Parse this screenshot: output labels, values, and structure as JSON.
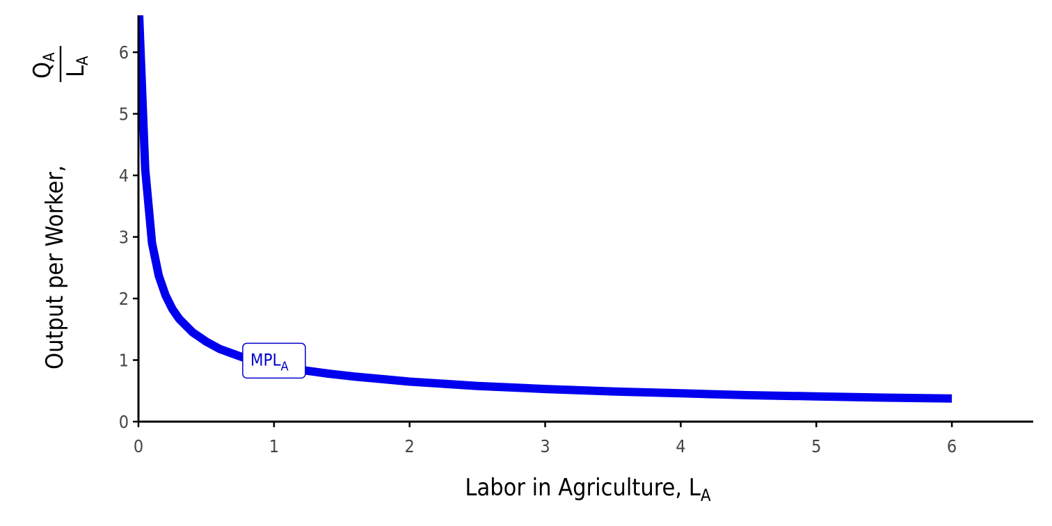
{
  "chart_data": {
    "type": "line",
    "xlabel": {
      "text": "Labor in Agriculture, L",
      "sub": "A"
    },
    "ylabel": {
      "text": "Output per Worker,",
      "fraction_numerator": {
        "text": "Q",
        "sub": "A"
      },
      "fraction_denominator": {
        "text": "L",
        "sub": "A"
      }
    },
    "xlim": [
      0,
      6.6
    ],
    "ylim": [
      0,
      6.6
    ],
    "x_ticks": [
      0,
      1,
      2,
      3,
      4,
      5,
      6
    ],
    "y_ticks": [
      0,
      1,
      2,
      3,
      4,
      5,
      6
    ],
    "grid": false,
    "series": [
      {
        "color": "#0000ee",
        "x": [
          0.005,
          0.05,
          0.1,
          0.15,
          0.2,
          0.25,
          0.3,
          0.4,
          0.5,
          0.6,
          0.7,
          0.8,
          0.9,
          1.0,
          1.2,
          1.4,
          1.6,
          1.8,
          2.0,
          2.5,
          3.0,
          3.5,
          4.0,
          4.5,
          5.0,
          5.5,
          6.0
        ],
        "y": [
          6.6,
          4.1,
          2.9,
          2.37,
          2.05,
          1.83,
          1.67,
          1.45,
          1.3,
          1.18,
          1.1,
          1.02,
          0.97,
          0.92,
          0.84,
          0.78,
          0.73,
          0.69,
          0.65,
          0.58,
          0.53,
          0.49,
          0.46,
          0.43,
          0.41,
          0.39,
          0.375
        ]
      }
    ],
    "annotations": [
      {
        "text": "MPL",
        "sub": "A",
        "x": 1.0,
        "y": 0.99,
        "color": "#0000cc"
      }
    ]
  }
}
